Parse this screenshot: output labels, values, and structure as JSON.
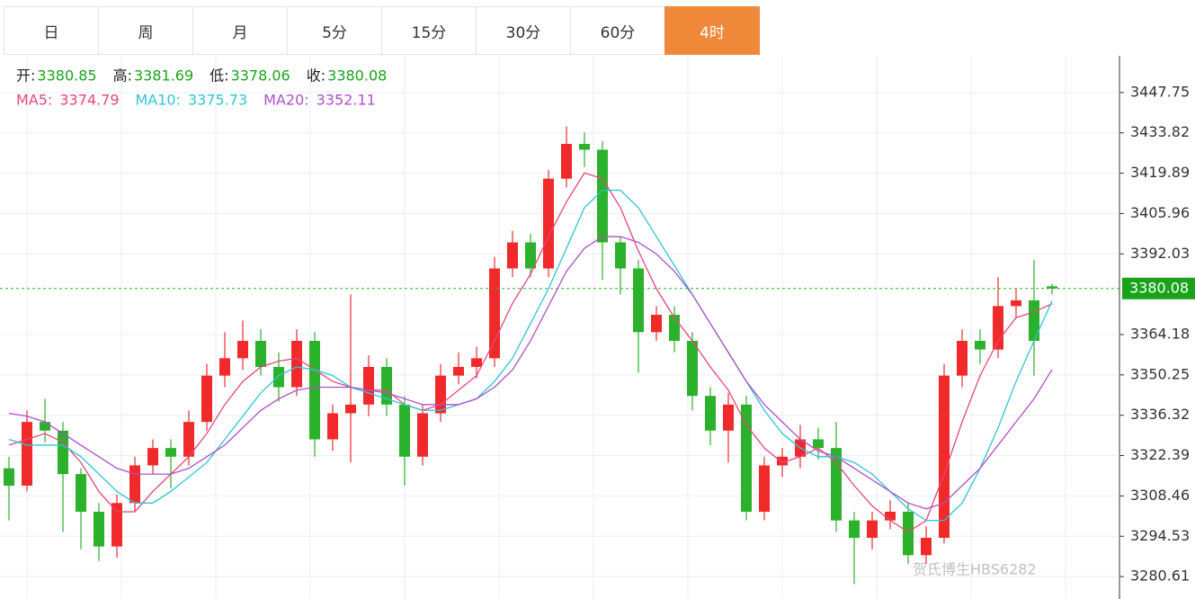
{
  "tabs": [
    "日",
    "周",
    "月",
    "5分",
    "15分",
    "30分",
    "60分",
    "4时"
  ],
  "active_tab": 7,
  "chart_data": {
    "type": "candlestick",
    "ohlc_labels": {
      "o": "开:",
      "h": "高:",
      "l": "低:",
      "c": "收:"
    },
    "up_color": "#f02a2a",
    "down_color": "#2bb12b",
    "candles": [
      {
        "o": 3318,
        "h": 3322,
        "l": 3300,
        "c": 3312
      },
      {
        "o": 3312,
        "h": 3338,
        "l": 3310,
        "c": 3334
      },
      {
        "o": 3334,
        "h": 3342,
        "l": 3327,
        "c": 3331
      },
      {
        "o": 3331,
        "h": 3334,
        "l": 3296,
        "c": 3316
      },
      {
        "o": 3316,
        "h": 3318,
        "l": 3290,
        "c": 3303
      },
      {
        "o": 3303,
        "h": 3306,
        "l": 3286,
        "c": 3291
      },
      {
        "o": 3291,
        "h": 3309,
        "l": 3287,
        "c": 3306
      },
      {
        "o": 3306,
        "h": 3322,
        "l": 3303,
        "c": 3319
      },
      {
        "o": 3319,
        "h": 3328,
        "l": 3316,
        "c": 3325
      },
      {
        "o": 3325,
        "h": 3328,
        "l": 3311,
        "c": 3322
      },
      {
        "o": 3322,
        "h": 3338,
        "l": 3319,
        "c": 3334
      },
      {
        "o": 3334,
        "h": 3354,
        "l": 3331,
        "c": 3350
      },
      {
        "o": 3350,
        "h": 3365,
        "l": 3346,
        "c": 3356
      },
      {
        "o": 3356,
        "h": 3369,
        "l": 3352,
        "c": 3362
      },
      {
        "o": 3362,
        "h": 3366,
        "l": 3350,
        "c": 3353
      },
      {
        "o": 3353,
        "h": 3358,
        "l": 3341,
        "c": 3346
      },
      {
        "o": 3346,
        "h": 3366,
        "l": 3343,
        "c": 3362
      },
      {
        "o": 3362,
        "h": 3365,
        "l": 3322,
        "c": 3328
      },
      {
        "o": 3328,
        "h": 3340,
        "l": 3324,
        "c": 3337
      },
      {
        "o": 3337,
        "h": 3378,
        "l": 3320,
        "c": 3340
      },
      {
        "o": 3340,
        "h": 3357,
        "l": 3336,
        "c": 3353
      },
      {
        "o": 3353,
        "h": 3356,
        "l": 3336,
        "c": 3340
      },
      {
        "o": 3340,
        "h": 3343,
        "l": 3312,
        "c": 3322
      },
      {
        "o": 3322,
        "h": 3340,
        "l": 3319,
        "c": 3337
      },
      {
        "o": 3337,
        "h": 3354,
        "l": 3334,
        "c": 3350
      },
      {
        "o": 3350,
        "h": 3358,
        "l": 3347,
        "c": 3353
      },
      {
        "o": 3353,
        "h": 3360,
        "l": 3349,
        "c": 3356
      },
      {
        "o": 3356,
        "h": 3391,
        "l": 3353,
        "c": 3387
      },
      {
        "o": 3387,
        "h": 3400,
        "l": 3384,
        "c": 3396
      },
      {
        "o": 3396,
        "h": 3399,
        "l": 3384,
        "c": 3387
      },
      {
        "o": 3387,
        "h": 3421,
        "l": 3384,
        "c": 3418
      },
      {
        "o": 3418,
        "h": 3436,
        "l": 3415,
        "c": 3430
      },
      {
        "o": 3430,
        "h": 3434,
        "l": 3422,
        "c": 3428
      },
      {
        "o": 3428,
        "h": 3431,
        "l": 3383,
        "c": 3396
      },
      {
        "o": 3396,
        "h": 3398,
        "l": 3378,
        "c": 3387
      },
      {
        "o": 3387,
        "h": 3390,
        "l": 3351,
        "c": 3365
      },
      {
        "o": 3365,
        "h": 3374,
        "l": 3362,
        "c": 3371
      },
      {
        "o": 3371,
        "h": 3374,
        "l": 3358,
        "c": 3362
      },
      {
        "o": 3362,
        "h": 3365,
        "l": 3338,
        "c": 3343
      },
      {
        "o": 3343,
        "h": 3346,
        "l": 3326,
        "c": 3331
      },
      {
        "o": 3331,
        "h": 3344,
        "l": 3320,
        "c": 3340
      },
      {
        "o": 3340,
        "h": 3343,
        "l": 3300,
        "c": 3303
      },
      {
        "o": 3303,
        "h": 3322,
        "l": 3300,
        "c": 3319
      },
      {
        "o": 3319,
        "h": 3325,
        "l": 3315,
        "c": 3322
      },
      {
        "o": 3322,
        "h": 3333,
        "l": 3318,
        "c": 3328
      },
      {
        "o": 3328,
        "h": 3332,
        "l": 3321,
        "c": 3325
      },
      {
        "o": 3325,
        "h": 3334,
        "l": 3296,
        "c": 3300
      },
      {
        "o": 3300,
        "h": 3303,
        "l": 3278,
        "c": 3294
      },
      {
        "o": 3294,
        "h": 3303,
        "l": 3290,
        "c": 3300
      },
      {
        "o": 3300,
        "h": 3307,
        "l": 3297,
        "c": 3303
      },
      {
        "o": 3303,
        "h": 3306,
        "l": 3285,
        "c": 3288
      },
      {
        "o": 3288,
        "h": 3298,
        "l": 3285,
        "c": 3294
      },
      {
        "o": 3294,
        "h": 3354,
        "l": 3292,
        "c": 3350
      },
      {
        "o": 3350,
        "h": 3366,
        "l": 3346,
        "c": 3362
      },
      {
        "o": 3362,
        "h": 3366,
        "l": 3354,
        "c": 3359
      },
      {
        "o": 3359,
        "h": 3384,
        "l": 3356,
        "c": 3374
      },
      {
        "o": 3374,
        "h": 3380,
        "l": 3370,
        "c": 3376
      },
      {
        "o": 3376,
        "h": 3390,
        "l": 3350,
        "c": 3362
      },
      {
        "o": 3380.85,
        "h": 3381.69,
        "l": 3378.06,
        "c": 3380.08
      }
    ],
    "series": [
      {
        "name": "MA5:",
        "color": "#e8457a",
        "values": [
          3326,
          3328,
          3330,
          3327,
          3320,
          3310,
          3303,
          3303,
          3310,
          3316,
          3322,
          3330,
          3340,
          3348,
          3353,
          3355,
          3356,
          3352,
          3348,
          3346,
          3345,
          3345,
          3340,
          3338,
          3340,
          3345,
          3350,
          3362,
          3375,
          3385,
          3398,
          3410,
          3420,
          3418,
          3408,
          3393,
          3380,
          3370,
          3362,
          3353,
          3345,
          3333,
          3325,
          3320,
          3322,
          3325,
          3320,
          3312,
          3305,
          3300,
          3296,
          3300,
          3316,
          3334,
          3350,
          3362,
          3370,
          3372,
          3374.79
        ]
      },
      {
        "name": "MA10:",
        "color": "#2fc4d8",
        "values": [
          3328,
          3326,
          3326,
          3326,
          3322,
          3316,
          3310,
          3306,
          3306,
          3310,
          3315,
          3320,
          3328,
          3336,
          3344,
          3350,
          3353,
          3352,
          3350,
          3346,
          3344,
          3342,
          3340,
          3338,
          3338,
          3340,
          3342,
          3348,
          3356,
          3368,
          3380,
          3394,
          3408,
          3414,
          3414,
          3408,
          3398,
          3388,
          3378,
          3368,
          3358,
          3348,
          3338,
          3330,
          3325,
          3322,
          3322,
          3320,
          3316,
          3310,
          3304,
          3300,
          3300,
          3306,
          3318,
          3332,
          3348,
          3362,
          3375.73
        ]
      },
      {
        "name": "MA20:",
        "color": "#b04fc8",
        "values": [
          3337,
          3336,
          3334,
          3330,
          3326,
          3322,
          3318,
          3316,
          3316,
          3316,
          3318,
          3322,
          3326,
          3332,
          3338,
          3342,
          3345,
          3346,
          3346,
          3346,
          3345,
          3344,
          3342,
          3340,
          3340,
          3340,
          3342,
          3346,
          3352,
          3362,
          3374,
          3386,
          3394,
          3398,
          3398,
          3396,
          3392,
          3386,
          3378,
          3368,
          3358,
          3348,
          3340,
          3334,
          3328,
          3324,
          3322,
          3318,
          3314,
          3310,
          3306,
          3304,
          3306,
          3312,
          3318,
          3326,
          3334,
          3342,
          3352.11
        ]
      }
    ],
    "ylim": [
      3272.87,
      3460.44
    ],
    "yticks": [
      3447.75,
      3433.82,
      3419.89,
      3405.96,
      3392.03,
      3364.18,
      3350.25,
      3336.32,
      3322.39,
      3308.46,
      3294.53,
      3280.61
    ],
    "grid": true,
    "watermark": "贺氏博生HBS6282"
  }
}
